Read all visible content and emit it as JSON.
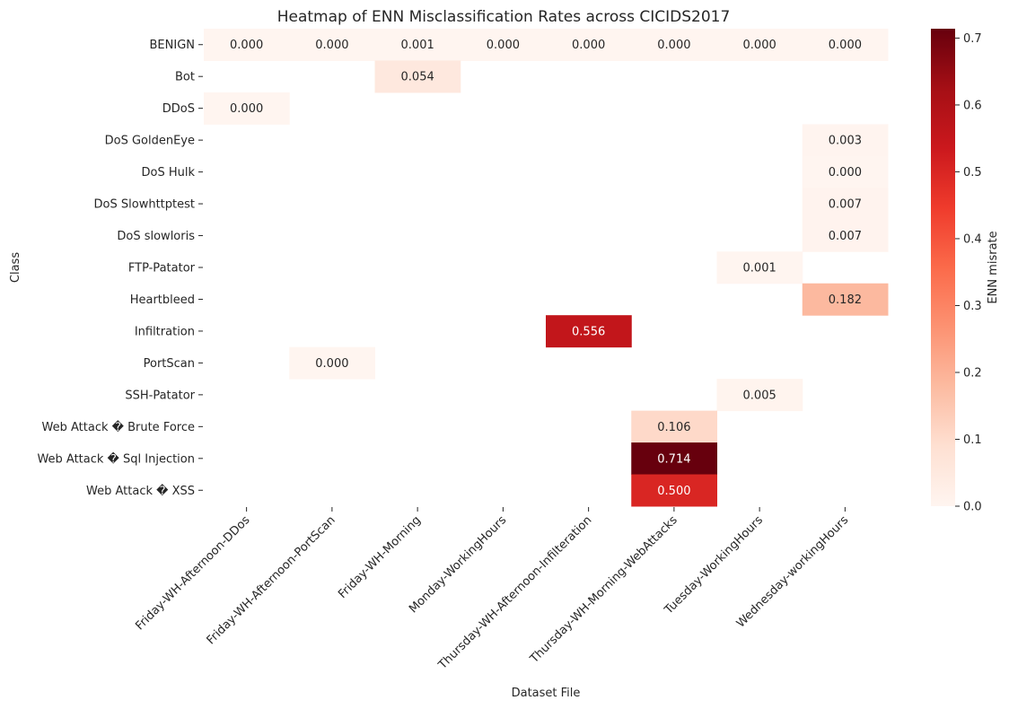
{
  "chart_data": {
    "type": "heatmap",
    "title": "Heatmap of ENN Misclassification Rates across CICIDS2017",
    "xlabel": "Dataset File",
    "ylabel": "Class",
    "colorbar_label": "ENN misrate",
    "colorbar_ticks": [
      "0.0",
      "0.1",
      "0.2",
      "0.3",
      "0.4",
      "0.5",
      "0.6",
      "0.7"
    ],
    "vmin": 0,
    "vmax": 0.714,
    "colormap": "Reds",
    "columns": [
      "Friday-WH-Afternoon-DDos",
      "Friday-WH-Afternoon-PortScan",
      "Friday-WH-Morning",
      "Monday-WorkingHours",
      "Thursday-WH-Afternoon-Infilteration",
      "Thursday-WH-Morning-WebAttacks",
      "Tuesday-WorkingHours",
      "Wednesday-workingHours"
    ],
    "rows": [
      "BENIGN",
      "Bot",
      "DDoS",
      "DoS GoldenEye",
      "DoS Hulk",
      "DoS Slowhttptest",
      "DoS slowloris",
      "FTP-Patator",
      "Heartbleed",
      "Infiltration",
      "PortScan",
      "SSH-Patator",
      "Web Attack � Brute Force",
      "Web Attack � Sql Injection",
      "Web Attack � XSS"
    ],
    "values": [
      [
        0.0,
        0.0,
        0.001,
        0.0,
        0.0,
        0.0,
        0.0,
        0.0
      ],
      [
        null,
        null,
        0.054,
        null,
        null,
        null,
        null,
        null
      ],
      [
        0.0,
        null,
        null,
        null,
        null,
        null,
        null,
        null
      ],
      [
        null,
        null,
        null,
        null,
        null,
        null,
        null,
        0.003
      ],
      [
        null,
        null,
        null,
        null,
        null,
        null,
        null,
        0.0
      ],
      [
        null,
        null,
        null,
        null,
        null,
        null,
        null,
        0.007
      ],
      [
        null,
        null,
        null,
        null,
        null,
        null,
        null,
        0.007
      ],
      [
        null,
        null,
        null,
        null,
        null,
        null,
        0.001,
        null
      ],
      [
        null,
        null,
        null,
        null,
        null,
        null,
        null,
        0.182
      ],
      [
        null,
        null,
        null,
        null,
        0.556,
        null,
        null,
        null
      ],
      [
        null,
        0.0,
        null,
        null,
        null,
        null,
        null,
        null
      ],
      [
        null,
        null,
        null,
        null,
        null,
        null,
        0.005,
        null
      ],
      [
        null,
        null,
        null,
        null,
        null,
        0.106,
        null,
        null
      ],
      [
        null,
        null,
        null,
        null,
        null,
        0.714,
        null,
        null
      ],
      [
        null,
        null,
        null,
        null,
        null,
        0.5,
        null,
        null
      ]
    ]
  }
}
